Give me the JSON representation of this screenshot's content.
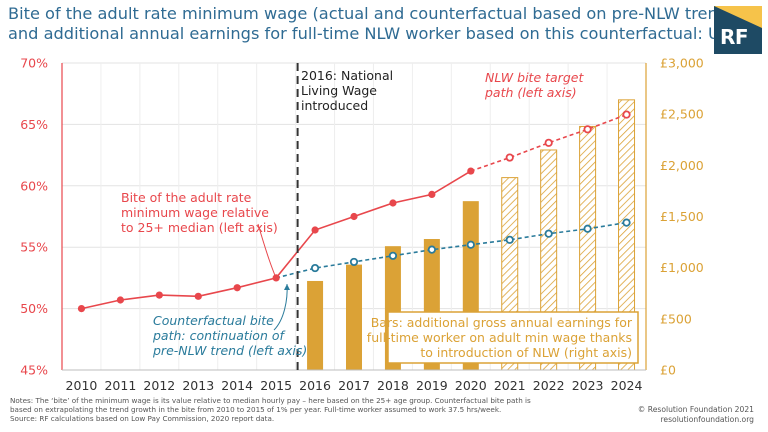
{
  "title_line1": "Bite of the adult rate minimum wage (actual and counterfactual based on pre-NLW trend)",
  "title_line2": "and additional annual earnings for full-time NLW worker based on this counterfactual: UK",
  "logo_text": "RF",
  "notes": {
    "line1": "Notes: The ‘bite’ of the minimum wage is its value relative to median hourly pay – here based on the 25+ age group. Counterfactual bite path is",
    "line2": "based on extrapolating the trend growth in the bite from 2010 to 2015 of 1% per year. Full-time worker assumed to work 37.5 hrs/week.",
    "line3": "Source: RF calculations based on Low Pay Commission, 2020 report data."
  },
  "credit": {
    "line1": "© Resolution Foundation 2021",
    "line2": "resolutionfoundation.org"
  },
  "colors": {
    "bite_line": "#e8474c",
    "counterfactual_line": "#2a7b9b",
    "bars": "#dba236",
    "text_blue": "#2f6b93",
    "axis_right": "#dba236"
  },
  "chart_data": {
    "type": "bar+line",
    "categories": [
      "2010",
      "2011",
      "2012",
      "2013",
      "2014",
      "2015",
      "2016",
      "2017",
      "2018",
      "2019",
      "2020",
      "2021",
      "2022",
      "2023",
      "2024"
    ],
    "y_left": {
      "min": 45,
      "max": 70,
      "ticks": [
        45,
        50,
        55,
        60,
        65,
        70
      ],
      "tick_labels": [
        "45%",
        "50%",
        "55%",
        "60%",
        "65%",
        "70%"
      ]
    },
    "y_right": {
      "min": 0,
      "max": 3000,
      "ticks": [
        0,
        500,
        1000,
        1500,
        2000,
        2500,
        3000
      ],
      "tick_labels": [
        "£0",
        "£500",
        "£1,000",
        "£1,500",
        "£2,000",
        "£2,500",
        "£3,000"
      ]
    },
    "grid": true,
    "series": [
      {
        "name": "Bite of the adult rate minimum wage (actual)",
        "axis": "left",
        "style": "solid",
        "x": [
          "2010",
          "2011",
          "2012",
          "2013",
          "2014",
          "2015",
          "2016",
          "2017",
          "2018",
          "2019",
          "2020"
        ],
        "values": [
          50.0,
          50.7,
          51.1,
          51.0,
          51.7,
          52.5,
          56.4,
          57.5,
          58.6,
          59.3,
          61.2
        ]
      },
      {
        "name": "NLW bite target path",
        "axis": "left",
        "style": "dashed",
        "x": [
          "2020",
          "2021",
          "2022",
          "2023",
          "2024"
        ],
        "values": [
          61.2,
          62.3,
          63.5,
          64.6,
          65.8
        ]
      },
      {
        "name": "Counterfactual bite path",
        "axis": "left",
        "style": "dashed",
        "x": [
          "2015",
          "2016",
          "2017",
          "2018",
          "2019",
          "2020",
          "2021",
          "2022",
          "2023",
          "2024"
        ],
        "values": [
          52.5,
          53.3,
          53.8,
          54.3,
          54.8,
          55.2,
          55.6,
          56.1,
          56.5,
          57.0
        ]
      },
      {
        "name": "Additional gross annual earnings",
        "axis": "right",
        "style": "bars",
        "x": [
          "2016",
          "2017",
          "2018",
          "2019",
          "2020",
          "2021",
          "2022",
          "2023",
          "2024"
        ],
        "values": [
          870,
          1030,
          1210,
          1280,
          1650,
          1880,
          2150,
          2380,
          2640
        ],
        "projected_from": "2021"
      }
    ],
    "annotations": {
      "nlw_intro": "2016: National Living Wage introduced",
      "nlw_intro_lines": [
        "2016: National",
        "Living Wage",
        "introduced"
      ],
      "bite_label": [
        "Bite of the adult rate",
        "minimum wage relative",
        "to 25+ median (left axis)"
      ],
      "target_label": [
        "NLW bite target",
        "path (left axis)"
      ],
      "counterfactual_label": [
        "Counterfactual bite",
        "path: continuation of",
        "pre-NLW trend (left axis)"
      ],
      "bars_label": [
        "Bars: additional gross annual earnings for",
        "full-time worker on adult min wage thanks",
        "to introduction of NLW (right axis)"
      ]
    }
  }
}
